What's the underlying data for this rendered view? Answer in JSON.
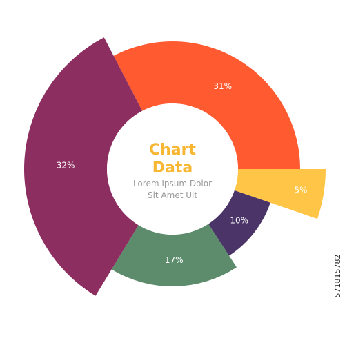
{
  "chart_data": {
    "type": "pie",
    "title": "Chart Data",
    "subtitle": "Lorem Ipsum Dolor Sit Amet Uit",
    "values": [
      31,
      5,
      10,
      17,
      32
    ],
    "value_labels": [
      "31%",
      "5%",
      "10%",
      "17%",
      "32%"
    ],
    "colors": [
      "#ff5a30",
      "#ffc547",
      "#4b3468",
      "#5c8c6c",
      "#8c2e5f"
    ]
  },
  "watermark": "571815782"
}
